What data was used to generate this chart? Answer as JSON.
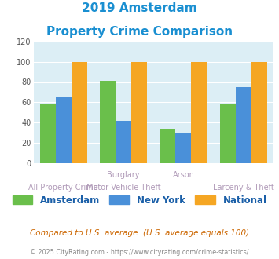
{
  "title_line1": "2019 Amsterdam",
  "title_line2": "Property Crime Comparison",
  "cat_labels_top": [
    "",
    "Burglary",
    "Arson",
    ""
  ],
  "cat_labels_bottom": [
    "All Property Crime",
    "Motor Vehicle Theft",
    "",
    "Larceny & Theft"
  ],
  "amsterdam": [
    59,
    81,
    34,
    58
  ],
  "new_york": [
    65,
    42,
    29,
    75
  ],
  "national": [
    100,
    100,
    100,
    100
  ],
  "colors": {
    "amsterdam": "#6abf4b",
    "new_york": "#4a90d9",
    "national": "#f5a623"
  },
  "ylim": [
    0,
    120
  ],
  "yticks": [
    0,
    20,
    40,
    60,
    80,
    100,
    120
  ],
  "title_color": "#1a8fd1",
  "axis_bg_color": "#dceef5",
  "label_color": "#b09ab8",
  "legend_label_color": "#1a5fa8",
  "footer_text": "Compared to U.S. average. (U.S. average equals 100)",
  "copyright_text": "© 2025 CityRating.com - https://www.cityrating.com/crime-statistics/",
  "footer_color": "#cc6600",
  "copyright_color": "#888888"
}
